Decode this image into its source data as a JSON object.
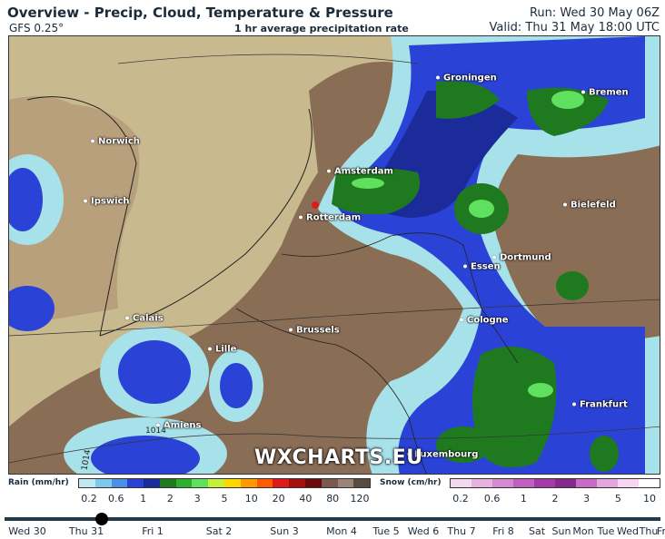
{
  "header": {
    "title": "Overview - Precip, Cloud, Temperature & Pressure",
    "model": "GFS 0.25°",
    "layer": "1 hr average precipitation rate",
    "run": "Run: Wed 30 May 06Z",
    "valid": "Valid: Thu 31 May 18:00 UTC"
  },
  "map": {
    "cities": [
      "Groningen",
      "Bremen",
      "Norwich",
      "Amsterdam",
      "Ipswich",
      "Rotterdam",
      "Bielefeld",
      "Dortmund",
      "Essen",
      "Calais",
      "Brussels",
      "Cologne",
      "Lille",
      "Frankfurt",
      "Amiens",
      "Luxembourg"
    ],
    "isobar_labels": [
      "1014",
      "1014"
    ],
    "watermark": "WXCHARTS.EU",
    "colors": {
      "land": "#8a6d55",
      "sea": "#c9b98f",
      "rain_light": "#a7e1ea",
      "rain_mid": "#2a43d6",
      "rain_dark": "#1b2b9a",
      "green": "#1f7a1f",
      "bright_green": "#5fe05f"
    }
  },
  "legend": {
    "rain": {
      "label": "Rain (mm/hr)",
      "ticks": [
        "0.2",
        "0.6",
        "1",
        "2",
        "3",
        "5",
        "10",
        "20",
        "40",
        "80",
        "120"
      ],
      "colors": [
        "#bfe9f0",
        "#7ec8ea",
        "#4a90e8",
        "#2a43d6",
        "#1b2b9a",
        "#1f7a1f",
        "#2fae2f",
        "#5fe05f",
        "#c6ef3a",
        "#ffd700",
        "#ff9a00",
        "#ff5a00",
        "#e01a1a",
        "#a50f0f",
        "#6b0a0a",
        "#7a5a50",
        "#9a8478",
        "#5a4a44"
      ]
    },
    "snow": {
      "label": "Snow (cm/hr)",
      "ticks": [
        "0.2",
        "0.6",
        "1",
        "2",
        "3",
        "5",
        "10"
      ],
      "colors": [
        "#f3d9ef",
        "#e5b3e0",
        "#d48ad0",
        "#c060be",
        "#a43aa8",
        "#852a8c",
        "#c86bc4",
        "#e4a6df",
        "#f6d6f2",
        "#ffffff"
      ]
    }
  },
  "timeline": {
    "days": [
      "Wed 30",
      "Thu 31",
      "Fri 1",
      "Sat 2",
      "Sun 3",
      "Mon 4",
      "Tue 5",
      "Wed 6",
      "Thu 7",
      "Fri 8",
      "Sat",
      "Sun",
      "Mon",
      "Tue",
      "Wed",
      "Thu",
      "Fr"
    ],
    "current": "Thu 31"
  }
}
